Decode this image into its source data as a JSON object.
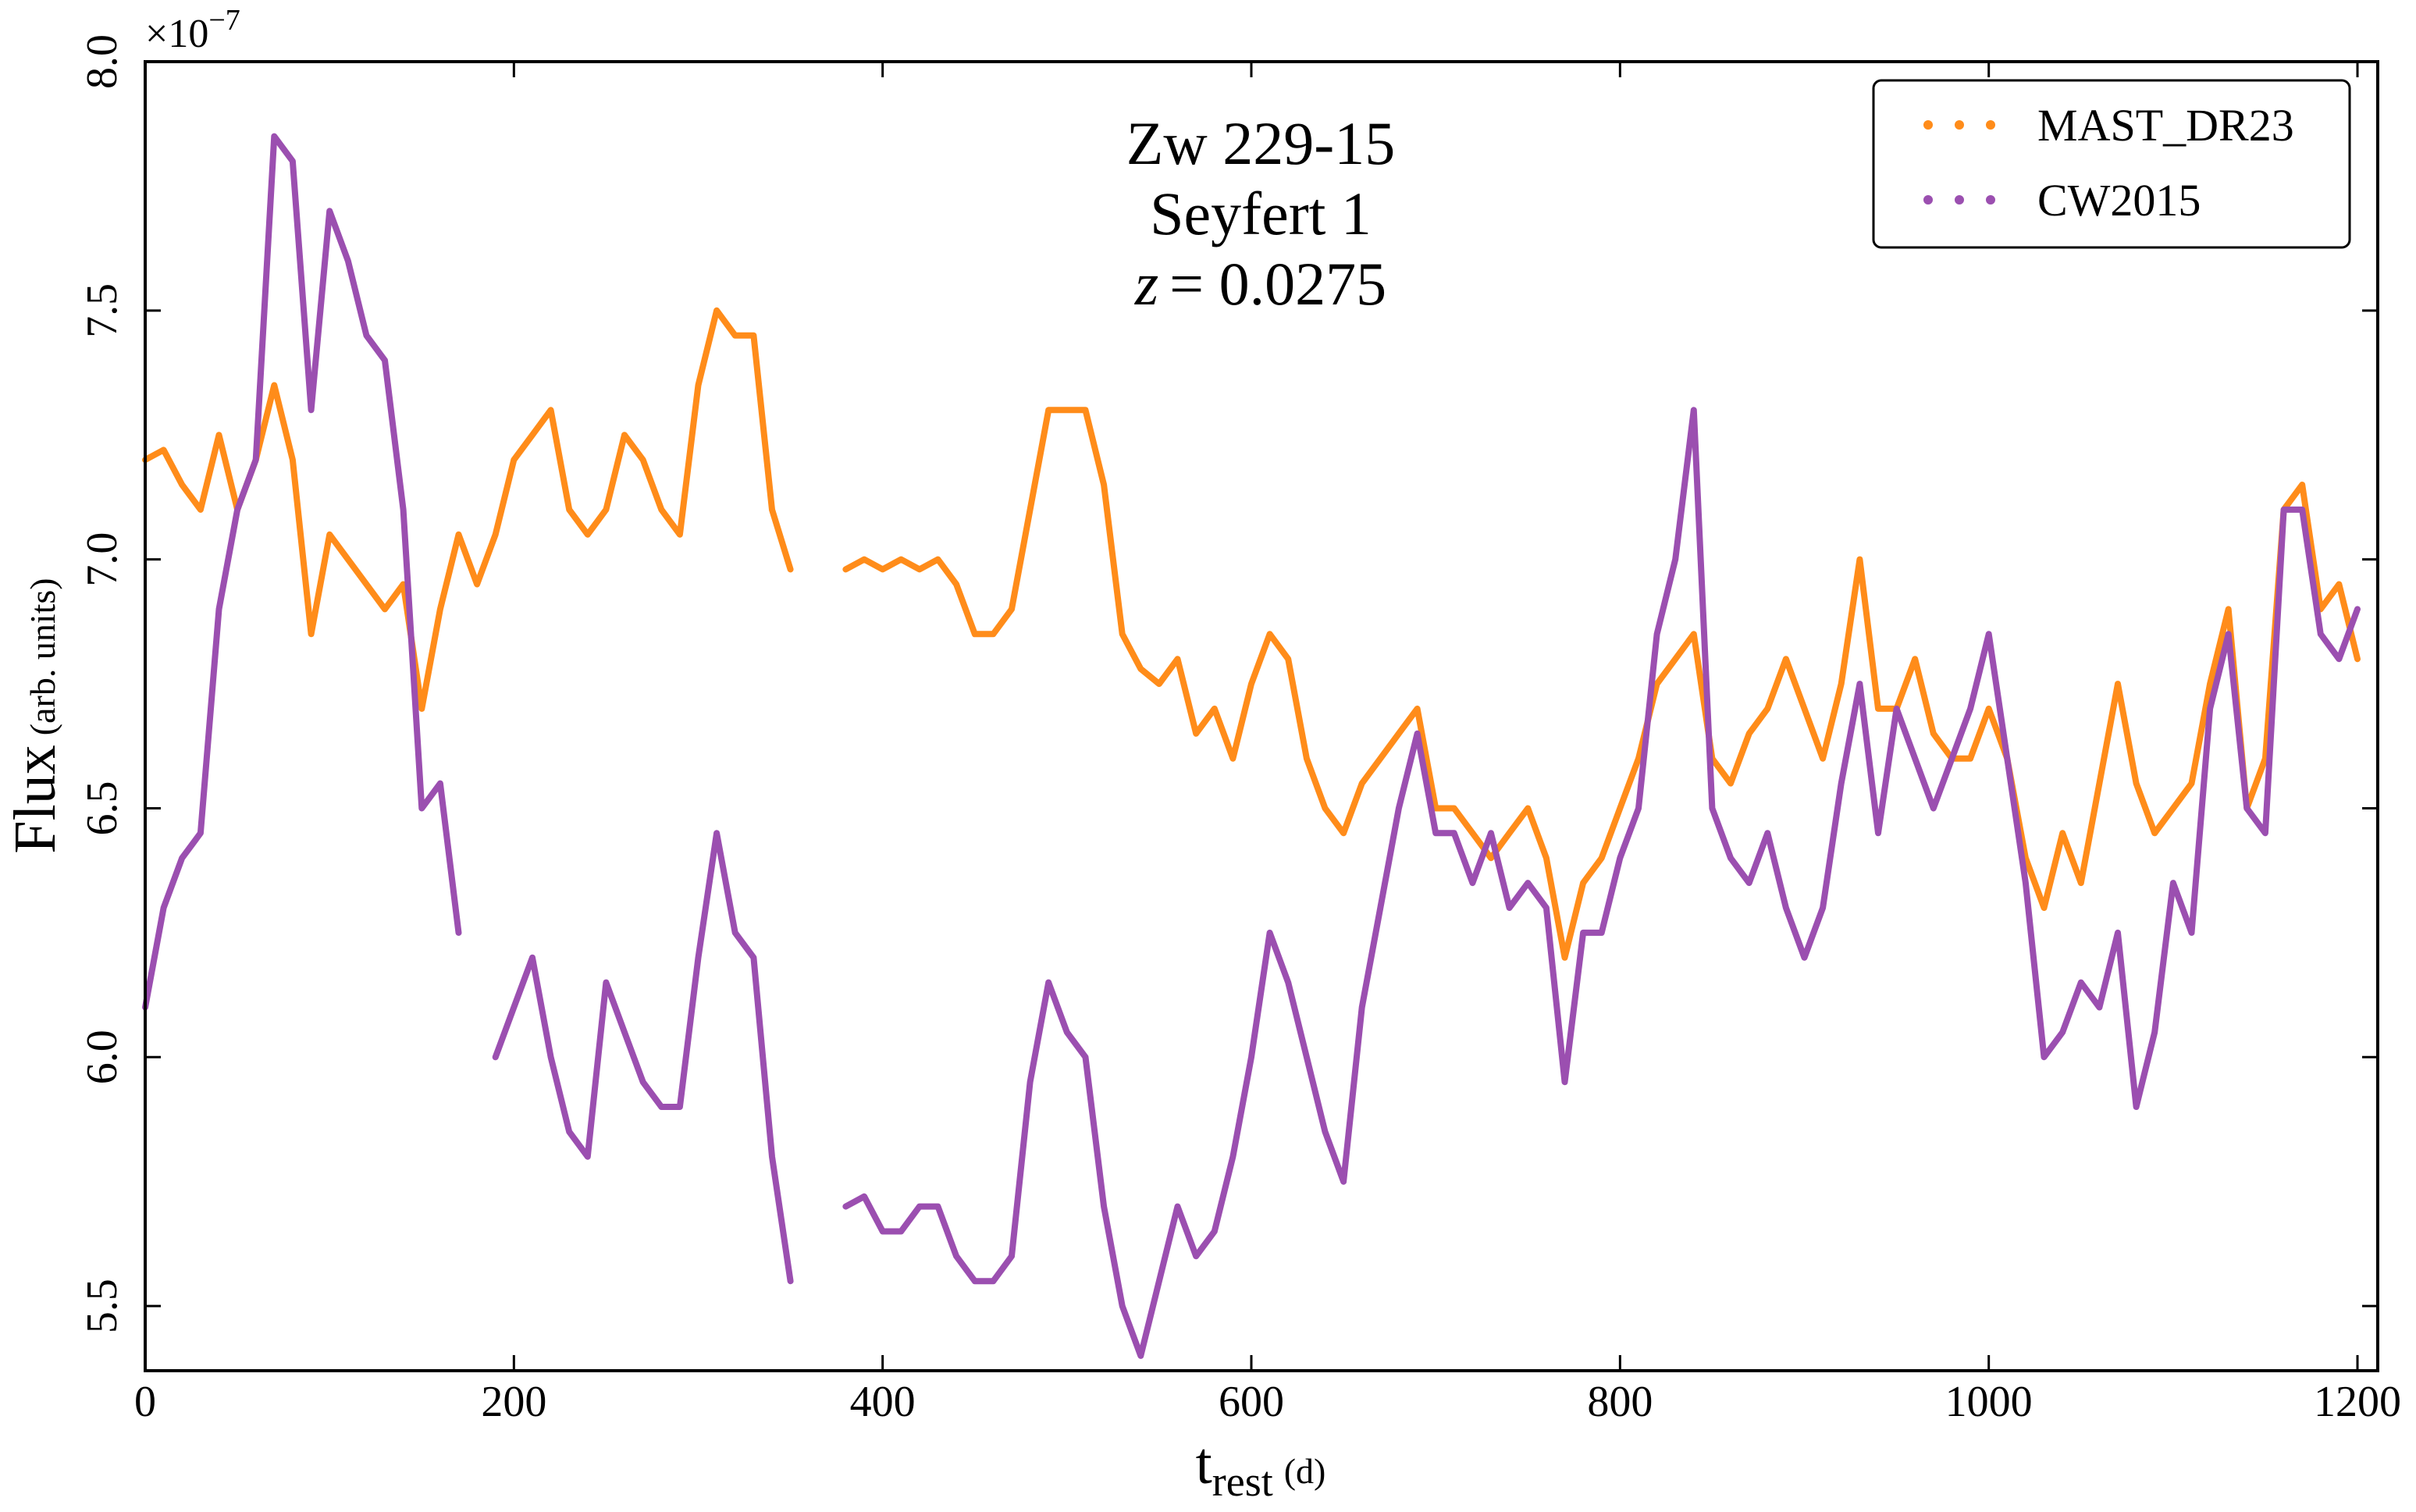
{
  "chart_data": {
    "type": "line",
    "title": [
      "Zw 229-15",
      "Seyfert 1"
    ],
    "redshift": {
      "symbol": "z",
      "text": "= 0.0275"
    },
    "xlabel": "t",
    "xlabel_sub": "rest",
    "xlabel_unit": "(d)",
    "ylabel": "Flux",
    "ylabel_unit": "(arb. units)",
    "y_multiplier": {
      "base": "×10",
      "exponent": "−7"
    },
    "xlim": [
      0,
      1211
    ],
    "ylim": [
      5.37,
      8.0
    ],
    "xticks": [
      0,
      200,
      400,
      600,
      800,
      1000,
      1200
    ],
    "yticks": [
      5.5,
      {
        "value": 6,
        "label": "6.0"
      },
      6.5,
      {
        "value": 7,
        "label": "7.0"
      },
      7.5,
      {
        "value": 8,
        "label": "8.0"
      }
    ],
    "legend": "upper right",
    "x": [
      0,
      10,
      20,
      30,
      40,
      50,
      60,
      70,
      80,
      90,
      100,
      110,
      120,
      130,
      140,
      150,
      160,
      170,
      180,
      190,
      200,
      210,
      220,
      230,
      240,
      250,
      260,
      270,
      280,
      290,
      300,
      310,
      320,
      330,
      340,
      350,
      360,
      370,
      380,
      390,
      400,
      410,
      420,
      430,
      440,
      450,
      460,
      470,
      480,
      490,
      500,
      510,
      520,
      530,
      540,
      550,
      560,
      570,
      580,
      590,
      600,
      610,
      620,
      630,
      640,
      650,
      660,
      670,
      680,
      690,
      700,
      710,
      720,
      730,
      740,
      750,
      760,
      770,
      780,
      790,
      800,
      810,
      820,
      830,
      840,
      850,
      860,
      870,
      880,
      890,
      900,
      910,
      920,
      930,
      940,
      950,
      960,
      970,
      980,
      990,
      1000,
      1010,
      1020,
      1030,
      1040,
      1050,
      1060,
      1070,
      1080,
      1090,
      1100,
      1110,
      1120,
      1130,
      1140,
      1150,
      1160,
      1170,
      1180,
      1190,
      1200
    ],
    "series": [
      {
        "name": "MAST_DR23",
        "color": "#ff8c1a",
        "values": [
          7.2,
          7.22,
          7.15,
          7.1,
          7.25,
          7.1,
          7.2,
          7.35,
          7.2,
          6.85,
          7.05,
          7.0,
          6.95,
          6.9,
          6.95,
          6.7,
          6.9,
          7.05,
          6.95,
          7.05,
          7.2,
          7.25,
          7.3,
          7.1,
          7.05,
          7.1,
          7.25,
          7.2,
          7.1,
          7.05,
          7.35,
          7.5,
          7.45,
          7.45,
          7.1,
          6.98,
          null,
          null,
          6.98,
          7.0,
          6.98,
          7.0,
          6.98,
          7.0,
          6.95,
          6.85,
          6.85,
          6.9,
          7.1,
          7.3,
          7.3,
          7.3,
          7.15,
          6.85,
          6.78,
          6.75,
          6.8,
          6.65,
          6.7,
          6.6,
          6.75,
          6.85,
          6.8,
          6.6,
          6.5,
          6.45,
          6.55,
          6.6,
          6.65,
          6.7,
          6.5,
          6.5,
          6.45,
          6.4,
          6.45,
          6.5,
          6.4,
          6.2,
          6.35,
          6.4,
          6.5,
          6.6,
          6.75,
          6.8,
          6.85,
          6.6,
          6.55,
          6.65,
          6.7,
          6.8,
          6.7,
          6.6,
          6.75,
          7.0,
          6.7,
          6.7,
          6.8,
          6.65,
          6.6,
          6.6,
          6.7,
          6.6,
          6.4,
          6.3,
          6.45,
          6.35,
          6.55,
          6.75,
          6.55,
          6.45,
          6.5,
          6.55,
          6.75,
          6.9,
          6.5,
          6.6,
          7.1,
          7.15,
          6.9,
          6.95,
          6.8
        ]
      },
      {
        "name": "CW2015",
        "color": "#9b4fb0",
        "values": [
          6.1,
          6.3,
          6.4,
          6.45,
          6.9,
          7.1,
          7.2,
          7.85,
          7.8,
          7.3,
          7.7,
          7.6,
          7.45,
          7.4,
          7.1,
          6.5,
          6.55,
          6.25,
          null,
          6.0,
          6.1,
          6.2,
          6.0,
          5.85,
          5.8,
          6.15,
          6.05,
          5.95,
          5.9,
          5.9,
          6.2,
          6.45,
          6.25,
          6.2,
          5.8,
          5.55,
          null,
          null,
          5.7,
          5.72,
          5.65,
          5.65,
          5.7,
          5.7,
          5.6,
          5.55,
          5.55,
          5.6,
          5.95,
          6.15,
          6.05,
          6.0,
          5.7,
          5.5,
          5.4,
          5.55,
          5.7,
          5.6,
          5.65,
          5.8,
          6.0,
          6.25,
          6.15,
          6.0,
          5.85,
          5.75,
          6.1,
          6.3,
          6.5,
          6.65,
          6.45,
          6.45,
          6.35,
          6.45,
          6.3,
          6.35,
          6.3,
          5.95,
          6.25,
          6.25,
          6.4,
          6.5,
          6.85,
          7.0,
          7.3,
          6.5,
          6.4,
          6.35,
          6.45,
          6.3,
          6.2,
          6.3,
          6.55,
          6.75,
          6.45,
          6.7,
          6.6,
          6.5,
          6.6,
          6.7,
          6.85,
          6.6,
          6.35,
          6.0,
          6.05,
          6.15,
          6.1,
          6.25,
          5.9,
          6.05,
          6.35,
          6.25,
          6.7,
          6.85,
          6.5,
          6.45,
          7.1,
          7.1,
          6.85,
          6.8,
          6.9
        ]
      }
    ]
  }
}
